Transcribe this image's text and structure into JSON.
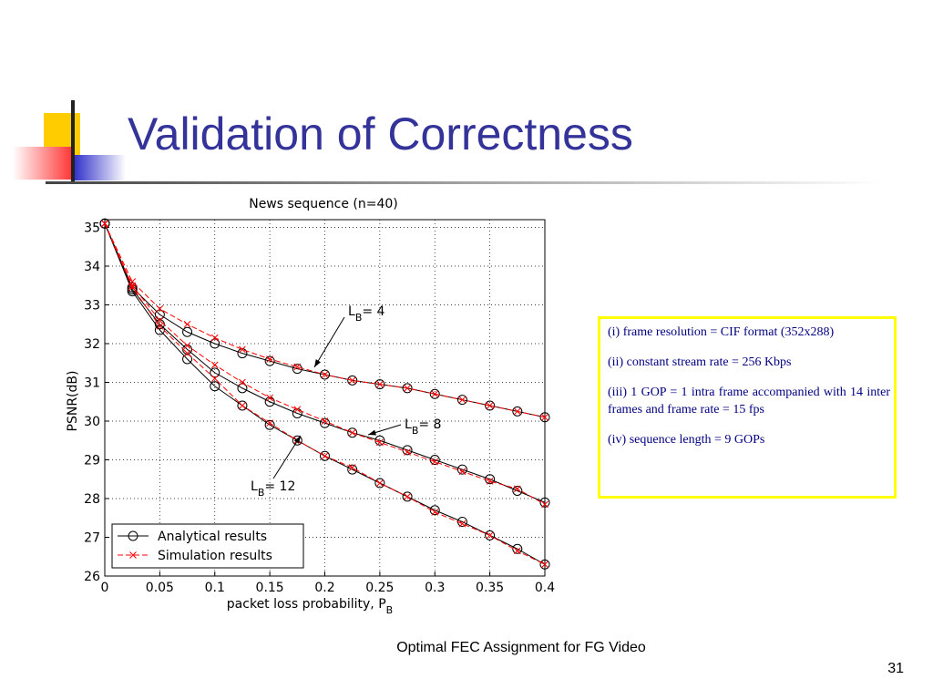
{
  "slide_title": "Validation of Correctness",
  "chart_data": {
    "type": "line",
    "title": "News sequence (n=40)",
    "xlabel": {
      "text": "packet loss probability, P",
      "subscript": "B"
    },
    "ylabel": "PSNR(dB)",
    "x": [
      0,
      0.025,
      0.05,
      0.075,
      0.1,
      0.125,
      0.15,
      0.175,
      0.2,
      0.225,
      0.25,
      0.275,
      0.3,
      0.325,
      0.35,
      0.375,
      0.4
    ],
    "xlim": [
      0,
      0.4
    ],
    "xticks": [
      0,
      0.05,
      0.1,
      0.15,
      0.2,
      0.25,
      0.3,
      0.35,
      0.4
    ],
    "ylim": [
      26,
      35.2
    ],
    "yticks": [
      26,
      27,
      28,
      29,
      30,
      31,
      32,
      33,
      34,
      35
    ],
    "grid": true,
    "legend": "lower left",
    "series": [
      {
        "name": "Analytical results",
        "color": "#000000",
        "marker": "o",
        "lines": [
          {
            "values": [
              35.1,
              33.45,
              32.75,
              32.3,
              32.0,
              31.75,
              31.55,
              31.35,
              31.2,
              31.05,
              30.95,
              30.85,
              30.7,
              30.55,
              30.4,
              30.25,
              30.1
            ]
          },
          {
            "values": [
              35.1,
              33.4,
              32.5,
              31.85,
              31.25,
              30.85,
              30.5,
              30.2,
              29.95,
              29.7,
              29.5,
              29.25,
              29.0,
              28.75,
              28.5,
              28.2,
              27.9
            ]
          },
          {
            "values": [
              35.1,
              33.35,
              32.35,
              31.6,
              30.9,
              30.4,
              29.9,
              29.5,
              29.1,
              28.75,
              28.4,
              28.05,
              27.7,
              27.4,
              27.05,
              26.7,
              26.3
            ]
          }
        ]
      },
      {
        "name": "Simulation results",
        "color": "#ff0000",
        "marker": "x",
        "lines": [
          {
            "values": [
              35.1,
              33.6,
              32.9,
              32.5,
              32.15,
              31.85,
              31.6,
              31.4,
              31.2,
              31.05,
              30.95,
              30.85,
              30.7,
              30.55,
              30.4,
              30.25,
              30.1
            ]
          },
          {
            "values": [
              35.1,
              33.5,
              32.6,
              31.95,
              31.45,
              31.0,
              30.6,
              30.3,
              30.0,
              29.7,
              29.45,
              29.2,
              28.95,
              28.7,
              28.45,
              28.25,
              27.85
            ]
          },
          {
            "values": [
              35.1,
              33.45,
              32.45,
              31.75,
              31.1,
              30.4,
              29.95,
              29.5,
              29.1,
              28.8,
              28.4,
              28.05,
              27.65,
              27.35,
              27.05,
              26.65,
              26.3
            ]
          }
        ]
      }
    ],
    "annotations": [
      {
        "text": "L",
        "subscript": "B",
        "suffix": "= 4"
      },
      {
        "text": "L",
        "subscript": "B",
        "suffix": "= 8"
      },
      {
        "text": "L",
        "subscript": "B",
        "suffix": "= 12"
      }
    ]
  },
  "notes": [
    "(i) frame resolution = CIF format (352x288)",
    "(ii) constant stream rate = 256 Kbps",
    "(iii) 1 GOP = 1 intra frame accompanied with 14 inter frames and frame rate = 15 fps",
    "(iv) sequence length = 9 GOPs"
  ],
  "footer": "Optimal FEC Assignment for FG Video",
  "page_number": "31"
}
